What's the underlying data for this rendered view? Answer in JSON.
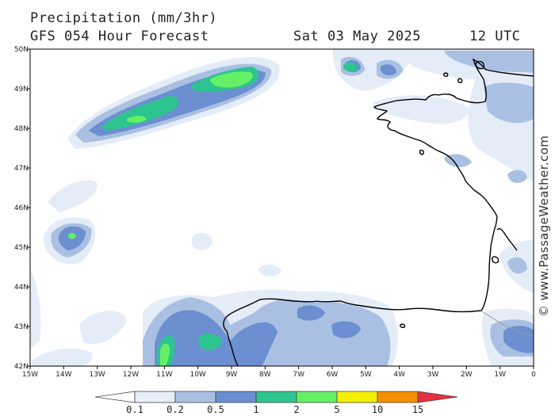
{
  "header": {
    "title": "Precipitation (mm/3hr)",
    "subtitle": "GFS 054 Hour Forecast",
    "date": "Sat 03 May 2025",
    "time": "12 UTC"
  },
  "credit": "© www.PassageWeather.com",
  "map": {
    "lon_labels": [
      "15W",
      "14W",
      "13W",
      "12W",
      "11W",
      "10W",
      "9W",
      "8W",
      "7W",
      "6W",
      "5W",
      "4W",
      "3W",
      "2W",
      "1W",
      "0"
    ],
    "lat_labels": [
      "50N",
      "49N",
      "48N",
      "47N",
      "46N",
      "45N",
      "44N",
      "43N",
      "42N"
    ]
  },
  "legend": {
    "labels": [
      "0.1",
      "0.2",
      "0.5",
      "1",
      "2",
      "5",
      "10",
      "15"
    ],
    "colors": [
      "#ffffff",
      "#e8eef8",
      "#aac0e2",
      "#6b8fd0",
      "#2ec490",
      "#66f066",
      "#f4f000",
      "#f49000",
      "#e83040"
    ]
  },
  "colors": {
    "very_light": "#e4ecf7",
    "light": "#aac0e2",
    "medium": "#6b8fd0",
    "teal": "#2ec490",
    "green": "#66f066",
    "coast": "#000000"
  }
}
